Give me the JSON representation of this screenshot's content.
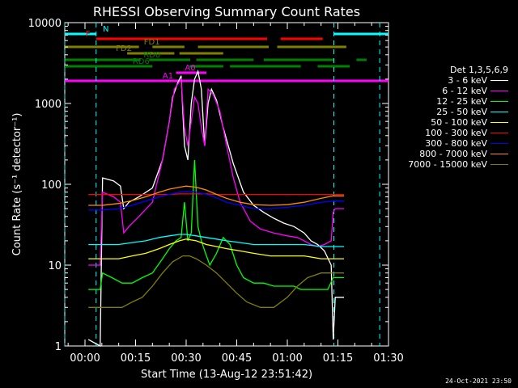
{
  "chart_data": {
    "type": "line",
    "title": "RHESSI Observing Summary Count Rates",
    "xlabel": "Start Time (13-Aug-12 23:51:42)",
    "ylabel": "Count Rate (s⁻¹ detector⁻¹)",
    "xlim_min": [
      -6,
      90
    ],
    "ylim": [
      1,
      10000
    ],
    "yscale": "log",
    "x_ticks": [
      0,
      15,
      30,
      45,
      60,
      75,
      90
    ],
    "x_tick_labels": [
      "00:00",
      "00:15",
      "00:30",
      "00:45",
      "01:00",
      "01:15",
      "01:30"
    ],
    "y_ticks": [
      1,
      10,
      100,
      1000,
      10000
    ],
    "y_tick_labels": [
      "1",
      "10",
      "100",
      "1000",
      "10000"
    ],
    "legend_title": "Det 1,3,5,6,9",
    "legend_position": "right",
    "series": [
      {
        "name": "3 - 6 keV",
        "color": "#ffffff",
        "x": [
          1.0,
          4.5,
          5.2,
          8.5,
          10.5,
          11.5,
          13,
          16,
          20,
          23,
          25,
          26,
          27.5,
          28.5,
          29.5,
          30.5,
          31.5,
          32.5,
          33.5,
          34.5,
          35.5,
          36.5,
          37.5,
          39,
          41,
          44,
          47,
          50,
          53,
          56,
          59,
          62,
          65,
          67,
          69,
          71,
          73,
          73.6,
          74.2,
          76.8
        ],
        "y": [
          1.2,
          1.0,
          120,
          110,
          95,
          50,
          60,
          70,
          90,
          200,
          600,
          1200,
          1800,
          2200,
          300,
          200,
          1000,
          2000,
          2500,
          1500,
          300,
          1000,
          1500,
          1100,
          500,
          180,
          80,
          55,
          45,
          38,
          33,
          30,
          25,
          20,
          18,
          15,
          10,
          1.2,
          4,
          4
        ]
      },
      {
        "name": "6 - 12 keV",
        "color": "#ff00ff",
        "x": [
          1.0,
          4.5,
          5.2,
          8.5,
          10.5,
          11.5,
          13,
          16,
          20,
          23,
          25,
          26.5,
          28.5,
          29.5,
          30.5,
          31.5,
          32.5,
          33.5,
          34.5,
          35.5,
          36.5,
          38,
          40,
          42,
          44,
          46,
          49,
          52,
          56,
          60,
          63,
          65,
          67,
          69,
          71,
          73,
          73.6,
          74.2,
          76.8
        ],
        "y": [
          10,
          10,
          80,
          70,
          60,
          25,
          30,
          40,
          60,
          200,
          600,
          1500,
          2000,
          500,
          300,
          600,
          1200,
          1000,
          500,
          300,
          1500,
          1300,
          800,
          300,
          120,
          60,
          35,
          28,
          25,
          23,
          22,
          20,
          18,
          17,
          18,
          20,
          45,
          50,
          50
        ]
      },
      {
        "name": "12 - 25 keV",
        "color": "#00ff00",
        "x": [
          1.0,
          4.5,
          5.2,
          8,
          11,
          14,
          17,
          20,
          23,
          25,
          27,
          28.5,
          29.5,
          30.5,
          31.5,
          32.5,
          33.5,
          34.5,
          35.5,
          37,
          39,
          41,
          43,
          45,
          47,
          50,
          53,
          56,
          59,
          62,
          64,
          66,
          69,
          72,
          73.6,
          74.2,
          76.8
        ],
        "y": [
          5,
          5,
          8,
          7,
          6,
          6,
          7,
          8,
          12,
          16,
          20,
          22,
          60,
          20,
          25,
          200,
          30,
          20,
          15,
          10,
          14,
          22,
          18,
          10,
          7,
          6,
          6,
          5.5,
          5.5,
          5.5,
          5,
          5,
          5,
          5,
          7,
          7,
          7
        ]
      },
      {
        "name": "25 - 50 keV",
        "color": "#00ffff",
        "x": [
          1.0,
          5.2,
          10,
          14,
          18,
          22,
          25,
          28,
          30,
          33,
          36,
          39,
          42,
          46,
          50,
          55,
          60,
          65,
          70,
          73.6,
          74.2,
          76.8
        ],
        "y": [
          18,
          18,
          18,
          19,
          20,
          22,
          23,
          24,
          24,
          23,
          22,
          21,
          20,
          19,
          18,
          18,
          18,
          18,
          17,
          17,
          17,
          17
        ]
      },
      {
        "name": "50 - 100 keV",
        "color": "#ffff00",
        "x": [
          1.0,
          5.2,
          10,
          14,
          18,
          22,
          25,
          28,
          30,
          33,
          36,
          39,
          42,
          46,
          50,
          55,
          60,
          65,
          70,
          73.6,
          74.2,
          76.8
        ],
        "y": [
          12,
          12,
          12,
          13,
          14,
          16,
          18,
          20,
          21,
          20,
          18,
          17,
          16,
          15,
          14,
          13,
          13,
          13,
          12,
          12,
          12,
          12
        ]
      },
      {
        "name": "100 - 300 keV",
        "color": "#ff0000",
        "x": [
          1.0,
          5.2,
          10,
          14,
          18,
          22,
          25,
          28,
          30,
          33,
          36,
          39,
          42,
          46,
          50,
          55,
          60,
          65,
          70,
          73.6,
          74.2,
          76.8
        ],
        "y": [
          75,
          75,
          75,
          75,
          75,
          75,
          75,
          76,
          76,
          76,
          76,
          75,
          75,
          75,
          75,
          75,
          75,
          75,
          75,
          75,
          75,
          75
        ]
      },
      {
        "name": "300 - 800 keV",
        "color": "#0000ff",
        "x": [
          1.0,
          5.2,
          10,
          14,
          18,
          22,
          25,
          28,
          30,
          33,
          36,
          39,
          42,
          46,
          50,
          55,
          60,
          65,
          70,
          73.6,
          74.2,
          76.8
        ],
        "y": [
          48,
          48,
          50,
          55,
          62,
          70,
          75,
          80,
          82,
          80,
          75,
          68,
          60,
          55,
          50,
          50,
          52,
          55,
          60,
          62,
          62,
          62
        ]
      },
      {
        "name": "800 - 7000 keV",
        "color": "#ff8c00",
        "x": [
          1.0,
          5.2,
          10,
          14,
          18,
          22,
          25,
          28,
          30,
          33,
          36,
          39,
          42,
          46,
          50,
          55,
          60,
          65,
          70,
          73.6,
          74.2,
          76.8
        ],
        "y": [
          55,
          55,
          58,
          63,
          70,
          80,
          87,
          92,
          95,
          92,
          85,
          75,
          67,
          60,
          56,
          55,
          56,
          60,
          67,
          72,
          72,
          72
        ]
      },
      {
        "name": "7000 - 15000 keV",
        "color": "#808000",
        "x": [
          1.0,
          5.2,
          8,
          11,
          14,
          17,
          20,
          23,
          26,
          29,
          31,
          33,
          36,
          39,
          42,
          45,
          48,
          52,
          56,
          60,
          63,
          66,
          70,
          73.6,
          74.2,
          76.8
        ],
        "y": [
          3,
          3,
          3,
          3,
          3.5,
          4,
          5.5,
          8,
          11,
          13,
          13,
          12,
          10,
          8,
          6,
          4.5,
          3.5,
          3,
          3,
          4,
          5.5,
          7,
          8,
          8,
          8,
          8
        ]
      }
    ],
    "flags": [
      {
        "label": "N",
        "color": "#00ffff",
        "segments": [
          [
            -6,
            3.3
          ],
          [
            73.8,
            90
          ]
        ]
      },
      {
        "label": "F",
        "color": "#ff0000",
        "segments": [
          [
            3.3,
            54.0
          ],
          [
            58.0,
            70.5
          ]
        ]
      },
      {
        "label": "FD1",
        "color": "#808000",
        "segments": [
          [
            -6,
            16
          ],
          [
            20,
            29.5
          ],
          [
            33.5,
            54.5
          ],
          [
            57,
            77.5
          ]
        ]
      },
      {
        "label": "FD2",
        "color": "#808000",
        "segments": [
          [
            12.5,
            26.5
          ],
          [
            28,
            41
          ]
        ]
      },
      {
        "label": "RD0",
        "color": "#008000",
        "segments": [
          [
            -6,
            16.5
          ],
          [
            19,
            31.2
          ],
          [
            33,
            50
          ],
          [
            53,
            73.8
          ],
          [
            80.5,
            83.5
          ]
        ]
      },
      {
        "label": "RD6",
        "color": "#008000",
        "segments": [
          [
            -6,
            20
          ],
          [
            31,
            41
          ],
          [
            43,
            64
          ],
          [
            69,
            78.5
          ]
        ]
      },
      {
        "label": "A0",
        "color": "#ff00ff",
        "segments": [
          [
            27,
            36
          ]
        ]
      },
      {
        "label": "A1",
        "color": "#ff00ff",
        "segments": [
          [
            -6,
            90
          ]
        ]
      }
    ],
    "saa_lines_minutes": [
      -6,
      3.3,
      73.8,
      87.4
    ]
  },
  "timestamp": "24-Oct-2021 23:50"
}
